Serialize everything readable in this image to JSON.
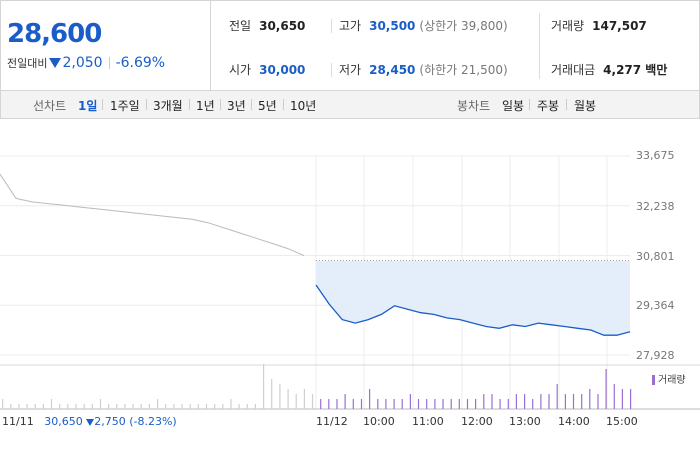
{
  "quote": {
    "price": "28,600",
    "change_label": "전일대비",
    "change_abs": "2,050",
    "change_pct": "-6.69%",
    "prev_close_label": "전일",
    "prev_close": "30,650",
    "high_label": "고가",
    "high": "30,500",
    "upper_limit": "(상한가 39,800)",
    "volume_label": "거래량",
    "volume": "147,507",
    "open_label": "시가",
    "open": "30,000",
    "low_label": "저가",
    "low": "28,450",
    "lower_limit": "(하한가 21,500)",
    "value_label": "거래대금",
    "value": "4,277 백만"
  },
  "tabs": {
    "line_label": "선차트",
    "periods": [
      "1일",
      "1주일",
      "3개월",
      "1년",
      "3년",
      "5년",
      "10년"
    ],
    "candle_label": "봉차트",
    "candles": [
      "일봉",
      "주봉",
      "월봉"
    ]
  },
  "chart_data": {
    "type": "line",
    "y_ticks": [
      "33,675",
      "32,238",
      "30,801",
      "29,364",
      "27,928"
    ],
    "ylim": [
      27928,
      33675
    ],
    "x_ticks": [
      "11/12",
      "10:00",
      "11:00",
      "12:00",
      "13:00",
      "14:00",
      "15:00"
    ],
    "prev_day_label": "11/11",
    "prev_day_info": {
      "close": "30,650",
      "change": "2,750",
      "pct": "(-8.23%)"
    },
    "reference_line": 30650,
    "series": [
      {
        "key": "prev_day",
        "color": "#bbbbbb",
        "values": [
          33150,
          32450,
          32350,
          32300,
          32250,
          32200,
          32150,
          32100,
          32050,
          32000,
          31950,
          31900,
          31850,
          31750,
          31600,
          31450,
          31300,
          31150,
          31000,
          30800
        ]
      },
      {
        "key": "today",
        "color": "#1a5dc8",
        "values": [
          29950,
          29400,
          28950,
          28850,
          28950,
          29100,
          29350,
          29250,
          29150,
          29100,
          29000,
          28950,
          28850,
          28750,
          28700,
          28800,
          28750,
          28850,
          28800,
          28750,
          28700,
          28650,
          28500,
          28500,
          28600
        ]
      }
    ],
    "volume_legend": "거래량",
    "volume": [
      2,
      1,
      1,
      1,
      1,
      1,
      2,
      1,
      1,
      1,
      1,
      1,
      2,
      1,
      1,
      1,
      1,
      1,
      1,
      2,
      1,
      1,
      1,
      1,
      1,
      1,
      1,
      1,
      2,
      1,
      1,
      1,
      9,
      6,
      5,
      4,
      3,
      4,
      3,
      2,
      2,
      2,
      3,
      2,
      2,
      4,
      2,
      2,
      2,
      2,
      3,
      2,
      2,
      2,
      2,
      2,
      2,
      2,
      2,
      3,
      3,
      2,
      2,
      3,
      3,
      2,
      3,
      3,
      5,
      3,
      3,
      3,
      4,
      3,
      8,
      5,
      4,
      4
    ]
  }
}
